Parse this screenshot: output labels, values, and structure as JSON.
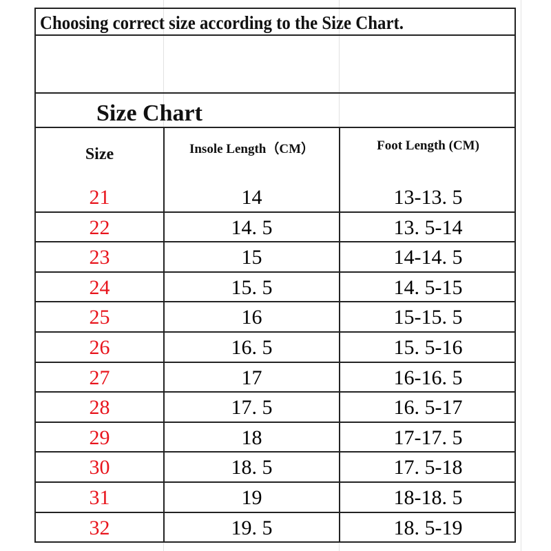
{
  "document": {
    "intro": "Choosing correct size according to the Size Chart.",
    "chart_title": "Size Chart",
    "headers": [
      "Size",
      "Insole Length（CM）",
      "Foot Length (CM)"
    ],
    "rows": [
      {
        "size": "21",
        "insole": "14",
        "foot": "13-13. 5"
      },
      {
        "size": "22",
        "insole": "14. 5",
        "foot": "13. 5-14"
      },
      {
        "size": "23",
        "insole": "15",
        "foot": "14-14. 5"
      },
      {
        "size": "24",
        "insole": "15. 5",
        "foot": "14. 5-15"
      },
      {
        "size": "25",
        "insole": "16",
        "foot": "15-15. 5"
      },
      {
        "size": "26",
        "insole": "16. 5",
        "foot": "15. 5-16"
      },
      {
        "size": "27",
        "insole": "17",
        "foot": "16-16. 5"
      },
      {
        "size": "28",
        "insole": "17. 5",
        "foot": "16. 5-17"
      },
      {
        "size": "29",
        "insole": "18",
        "foot": "17-17. 5"
      },
      {
        "size": "30",
        "insole": "18. 5",
        "foot": "17. 5-18"
      },
      {
        "size": "31",
        "insole": "19",
        "foot": "18-18. 5"
      },
      {
        "size": "32",
        "insole": "19. 5",
        "foot": "18. 5-19"
      }
    ],
    "colors": {
      "size_text": "#e8141c",
      "border": "#222222"
    }
  }
}
